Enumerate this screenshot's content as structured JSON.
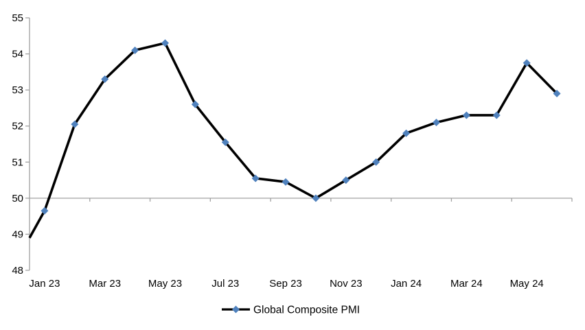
{
  "chart_data": {
    "type": "line",
    "title": "",
    "legend": {
      "position": "bottom-center",
      "entries": [
        {
          "label": "Global Composite PMI",
          "marker": "diamond",
          "marker_color": "#4F81BD",
          "line_color": "#000000"
        }
      ]
    },
    "x": [
      "Jan 23",
      "Feb 23",
      "Mar 23",
      "Apr 23",
      "May 23",
      "Jun 23",
      "Jul 23",
      "Aug 23",
      "Sep 23",
      "Oct 23",
      "Nov 23",
      "Dec 23",
      "Jan 24",
      "Feb 24",
      "Mar 24",
      "Apr 24",
      "May 24",
      "Jun 24"
    ],
    "x_tick_labels": [
      "Jan 23",
      "Mar 23",
      "May 23",
      "Jul 23",
      "Sep 23",
      "Nov 23",
      "Jan 24",
      "Mar 24",
      "May 24"
    ],
    "series": [
      {
        "name": "Global Composite PMI",
        "values": [
          49.65,
          52.05,
          53.3,
          54.1,
          54.3,
          52.6,
          51.55,
          50.55,
          50.45,
          50.0,
          50.5,
          51.0,
          51.8,
          52.1,
          52.3,
          52.3,
          53.75,
          52.9
        ],
        "left_edge_entry_value": 48.9,
        "left_edge_note": "line enters plot from the left axis at ~48.9 with no marker (clipped prior point)"
      }
    ],
    "ylim": [
      48,
      55
    ],
    "y_ticks": [
      48,
      49,
      50,
      51,
      52,
      53,
      54,
      55
    ],
    "axis_crossing_value": 50,
    "grid": "single horizontal line at value 50 with short downward tick marks every 2 months; no other gridlines; no plot border on top/right/bottom",
    "colors": {
      "series_line": "#000000",
      "marker_fill": "#4F81BD",
      "axis_line": "#A0A0A0",
      "tick_mark": "#A0A0A0",
      "label_text": "#000000",
      "background": "#FFFFFF"
    }
  }
}
